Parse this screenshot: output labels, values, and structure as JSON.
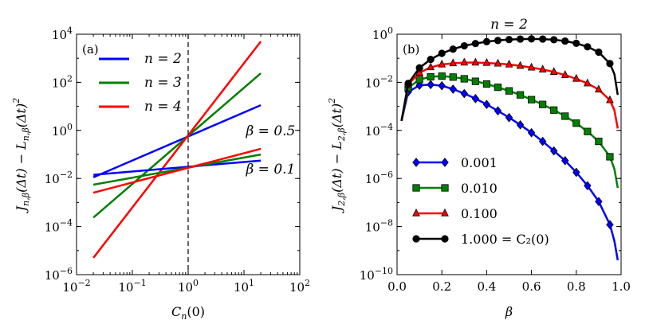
{
  "chart_data": [
    {
      "type": "line",
      "panel_label": "(a)",
      "xscale": "log",
      "yscale": "log",
      "xlim": [
        0.01,
        100
      ],
      "ylim": [
        1e-06,
        10000
      ],
      "xlabel": "C_n(0)",
      "ylabel": "J_n,β(Δt) − L_n,β(Δt)²",
      "xticks": [
        {
          "value": 0.01,
          "base": "10",
          "exp": "−2"
        },
        {
          "value": 0.1,
          "base": "10",
          "exp": "−1"
        },
        {
          "value": 1,
          "base": "10",
          "exp": "0"
        },
        {
          "value": 10,
          "base": "10",
          "exp": "1"
        },
        {
          "value": 100,
          "base": "10",
          "exp": "2"
        }
      ],
      "yticks": [
        {
          "value": 1e-06,
          "base": "10",
          "exp": "−6"
        },
        {
          "value": 0.0001,
          "base": "10",
          "exp": "−4"
        },
        {
          "value": 0.01,
          "base": "10",
          "exp": "−2"
        },
        {
          "value": 1,
          "base": "10",
          "exp": "0"
        },
        {
          "value": 100,
          "base": "10",
          "exp": "2"
        },
        {
          "value": 10000,
          "base": "10",
          "exp": "4"
        }
      ],
      "vline_x": 1,
      "annotations": [
        {
          "text": "β = 0.5",
          "x": 30,
          "y": 1.0
        },
        {
          "text": "β = 0.1",
          "x": 30,
          "y": 0.025
        }
      ],
      "series": [
        {
          "name": "n = 2",
          "color": "#0000ff",
          "legend": "n = 2",
          "x": [
            0.02,
            20
          ],
          "y": [
            0.0112,
            11.2
          ]
        },
        {
          "name": "n = 3",
          "color": "#008000",
          "legend": "n = 3",
          "x": [
            0.02,
            20
          ],
          "y": [
            0.000237,
            237
          ]
        },
        {
          "name": "n = 4",
          "color": "#ff0000",
          "legend": "n = 4",
          "x": [
            0.02,
            20
          ],
          "y": [
            5e-06,
            5000
          ]
        },
        {
          "name": "n = 2 (β = 0.1)",
          "color": "#0000ff",
          "legend": null,
          "x": [
            0.02,
            20
          ],
          "y": [
            0.0142,
            0.0556
          ]
        },
        {
          "name": "n = 3 (β = 0.1)",
          "color": "#008000",
          "legend": null,
          "x": [
            0.02,
            20
          ],
          "y": [
            0.0055,
            0.099
          ]
        },
        {
          "name": "n = 4 (β = 0.1)",
          "color": "#ff0000",
          "legend": null,
          "x": [
            0.02,
            20
          ],
          "y": [
            0.00255,
            0.1714
          ]
        }
      ]
    },
    {
      "type": "line",
      "panel_label": "(b)",
      "title": "n = 2",
      "xscale": "linear",
      "yscale": "log",
      "xlim": [
        0.0,
        1.0
      ],
      "ylim": [
        1e-10,
        1
      ],
      "xlabel": "β",
      "ylabel": "J_2,β(Δt) − L_2,β(Δt)²",
      "xticks": [
        {
          "value": 0.0,
          "label": "0.0"
        },
        {
          "value": 0.2,
          "label": "0.2"
        },
        {
          "value": 0.4,
          "label": "0.4"
        },
        {
          "value": 0.6,
          "label": "0.6"
        },
        {
          "value": 0.8,
          "label": "0.8"
        },
        {
          "value": 1.0,
          "label": "1.0"
        }
      ],
      "yticks": [
        {
          "value": 1e-10,
          "base": "10",
          "exp": "−10"
        },
        {
          "value": 1e-08,
          "base": "10",
          "exp": "−8"
        },
        {
          "value": 1e-06,
          "base": "10",
          "exp": "−6"
        },
        {
          "value": 0.0001,
          "base": "10",
          "exp": "−4"
        },
        {
          "value": 0.01,
          "base": "10",
          "exp": "−2"
        },
        {
          "value": 1,
          "base": "10",
          "exp": "0"
        }
      ],
      "legend_title_note": "",
      "series": [
        {
          "name": "0.001",
          "legend": "0.001",
          "color": "#0000ff",
          "marker": "diamond",
          "x": [
            0.02,
            0.05,
            0.1,
            0.15,
            0.2,
            0.25,
            0.3,
            0.35,
            0.4,
            0.45,
            0.5,
            0.55,
            0.6,
            0.65,
            0.7,
            0.75,
            0.8,
            0.85,
            0.9,
            0.95,
            0.97,
            0.985
          ],
          "y": [
            0.00025,
            0.004,
            0.0075,
            0.008,
            0.0072,
            0.0052,
            0.0034,
            0.0021,
            0.0012,
            0.00065,
            0.00034,
            0.00017,
            8e-05,
            3.5e-05,
            1.4e-05,
            5.5e-06,
            1.8e-06,
            5e-07,
            1.1e-07,
            1.2e-08,
            2.5e-09,
            4e-10
          ],
          "marker_x": [
            0.05,
            0.1,
            0.15,
            0.2,
            0.25,
            0.3,
            0.35,
            0.4,
            0.45,
            0.5,
            0.55,
            0.6,
            0.65,
            0.7,
            0.75,
            0.8,
            0.85,
            0.9,
            0.95
          ],
          "marker_y": [
            0.004,
            0.0075,
            0.008,
            0.0072,
            0.0052,
            0.0034,
            0.0021,
            0.0012,
            0.00065,
            0.00034,
            0.00017,
            8e-05,
            3.5e-05,
            1.4e-05,
            5.5e-06,
            1.8e-06,
            5e-07,
            1.1e-07,
            1.2e-08
          ]
        },
        {
          "name": "0.010",
          "legend": "0.010",
          "color": "#008000",
          "marker": "square",
          "x": [
            0.02,
            0.05,
            0.1,
            0.15,
            0.2,
            0.25,
            0.3,
            0.35,
            0.4,
            0.45,
            0.5,
            0.55,
            0.6,
            0.65,
            0.7,
            0.75,
            0.8,
            0.85,
            0.9,
            0.95,
            0.97,
            0.985
          ],
          "y": [
            0.00025,
            0.006,
            0.013,
            0.017,
            0.018,
            0.0165,
            0.014,
            0.011,
            0.0085,
            0.0062,
            0.0044,
            0.003,
            0.0019,
            0.0012,
            0.0007,
            0.00039,
            0.0002,
            9e-05,
            3.5e-05,
            8e-06,
            2.5e-06,
            4e-07
          ],
          "marker_x": [
            0.05,
            0.1,
            0.15,
            0.2,
            0.25,
            0.3,
            0.35,
            0.4,
            0.45,
            0.5,
            0.55,
            0.6,
            0.65,
            0.7,
            0.75,
            0.8,
            0.85,
            0.9,
            0.95
          ],
          "marker_y": [
            0.006,
            0.013,
            0.017,
            0.018,
            0.0165,
            0.014,
            0.011,
            0.0085,
            0.0062,
            0.0044,
            0.003,
            0.0019,
            0.0012,
            0.0007,
            0.00039,
            0.0002,
            9e-05,
            3.5e-05,
            8e-06
          ]
        },
        {
          "name": "0.100",
          "legend": "0.100",
          "color": "#ff0000",
          "marker": "triangle",
          "x": [
            0.02,
            0.05,
            0.1,
            0.15,
            0.2,
            0.25,
            0.3,
            0.35,
            0.4,
            0.45,
            0.5,
            0.55,
            0.6,
            0.65,
            0.7,
            0.75,
            0.8,
            0.85,
            0.9,
            0.95,
            0.97,
            0.985
          ],
          "y": [
            0.00025,
            0.008,
            0.025,
            0.042,
            0.055,
            0.062,
            0.066,
            0.066,
            0.064,
            0.06,
            0.055,
            0.048,
            0.041,
            0.034,
            0.027,
            0.02,
            0.014,
            0.009,
            0.005,
            0.0018,
            0.0007,
            0.00012
          ],
          "marker_x": [
            0.05,
            0.1,
            0.15,
            0.2,
            0.25,
            0.3,
            0.35,
            0.4,
            0.45,
            0.5,
            0.55,
            0.6,
            0.65,
            0.7,
            0.75,
            0.8,
            0.85,
            0.9,
            0.95
          ],
          "marker_y": [
            0.008,
            0.025,
            0.042,
            0.055,
            0.062,
            0.066,
            0.066,
            0.064,
            0.06,
            0.055,
            0.048,
            0.041,
            0.034,
            0.027,
            0.02,
            0.014,
            0.009,
            0.005,
            0.0018
          ]
        },
        {
          "name": "1.000",
          "legend": "1.000 = C₂(0)",
          "color": "#000000",
          "marker": "circle",
          "x": [
            0.02,
            0.05,
            0.1,
            0.15,
            0.2,
            0.25,
            0.3,
            0.35,
            0.4,
            0.45,
            0.5,
            0.55,
            0.6,
            0.65,
            0.7,
            0.75,
            0.8,
            0.85,
            0.9,
            0.95,
            0.97,
            0.985
          ],
          "y": [
            0.00025,
            0.009,
            0.04,
            0.09,
            0.16,
            0.24,
            0.33,
            0.41,
            0.49,
            0.55,
            0.6,
            0.63,
            0.64,
            0.63,
            0.59,
            0.52,
            0.42,
            0.3,
            0.18,
            0.06,
            0.022,
            0.003
          ],
          "marker_x": [
            0.05,
            0.1,
            0.15,
            0.2,
            0.25,
            0.3,
            0.35,
            0.4,
            0.45,
            0.5,
            0.55,
            0.6,
            0.65,
            0.7,
            0.75,
            0.8,
            0.85,
            0.9,
            0.95
          ],
          "marker_y": [
            0.009,
            0.04,
            0.09,
            0.16,
            0.24,
            0.33,
            0.41,
            0.49,
            0.55,
            0.6,
            0.63,
            0.64,
            0.63,
            0.59,
            0.52,
            0.42,
            0.3,
            0.18,
            0.06
          ]
        }
      ]
    }
  ]
}
